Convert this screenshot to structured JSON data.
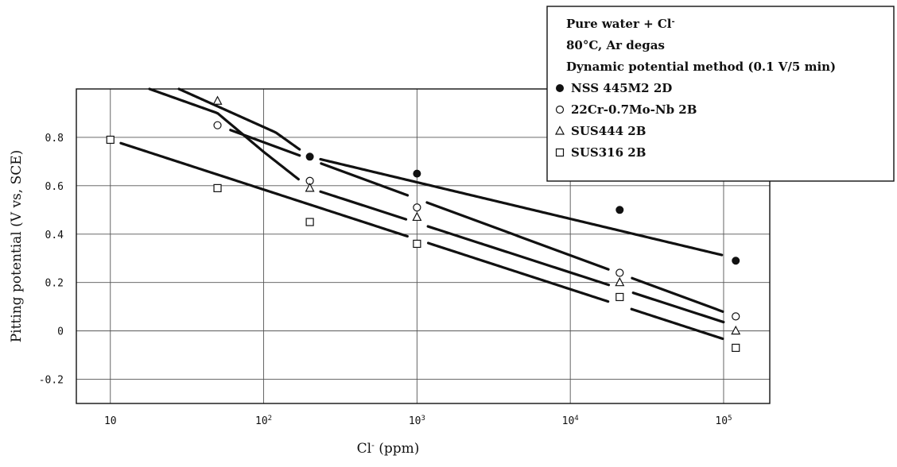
{
  "chart_data": {
    "type": "scatter",
    "xscale": "log",
    "xlim": [
      6,
      200000
    ],
    "ylim": [
      -0.3,
      1.0
    ],
    "grid": true,
    "xlabel_base": "Cl",
    "xlabel_sup": "-",
    "xlabel_unit": " (ppm)",
    "ylabel": "Pitting potential (V vs, SCE)",
    "x_ticks": [
      {
        "value": 10,
        "base": "10",
        "exp": ""
      },
      {
        "value": 100,
        "base": "10",
        "exp": "2"
      },
      {
        "value": 1000,
        "base": "10",
        "exp": "3"
      },
      {
        "value": 10000,
        "base": "10",
        "exp": "4"
      },
      {
        "value": 100000,
        "base": "10",
        "exp": "5"
      }
    ],
    "y_ticks": [
      {
        "value": 0.8,
        "label": "0.8"
      },
      {
        "value": 0.6,
        "label": "0.6"
      },
      {
        "value": 0.4,
        "label": "0.4"
      },
      {
        "value": 0.2,
        "label": "0.2"
      },
      {
        "value": 0,
        "label": "0"
      },
      {
        "value": -0.2,
        "label": "-0.2"
      }
    ],
    "legend": {
      "position": "top-right",
      "notes": [
        "Pure water + Cl",
        "80°C, Ar degas",
        "Dynamic potential method (0.1 V/5 min)"
      ],
      "note_sup": "-"
    },
    "series": [
      {
        "name": "NSS 445M2 2D",
        "marker": "filled-circle",
        "points": [
          [
            200,
            0.72
          ],
          [
            1000,
            0.65
          ],
          [
            21000,
            0.5
          ],
          [
            120000,
            0.29
          ]
        ],
        "fit": [
          [
            28,
            1.0
          ],
          [
            120,
            0.82
          ],
          [
            200,
            0.72
          ],
          [
            120000,
            0.3
          ]
        ],
        "gaps": [
          [
            175,
            230
          ],
          [
            100000,
            140000
          ]
        ]
      },
      {
        "name": "22Cr-0.7Mo-Nb 2B",
        "marker": "open-circle",
        "points": [
          [
            50,
            0.85
          ],
          [
            200,
            0.62
          ],
          [
            1000,
            0.51
          ],
          [
            21000,
            0.24
          ],
          [
            120000,
            0.06
          ]
        ],
        "fit": [
          [
            50,
            0.85
          ],
          [
            120000,
            0.06
          ]
        ],
        "gaps": [
          [
            42,
            60
          ],
          [
            175,
            230
          ],
          [
            870,
            1150
          ],
          [
            18000,
            25000
          ],
          [
            100000,
            140000
          ]
        ]
      },
      {
        "name": "SUS444 2B",
        "marker": "open-triangle",
        "points": [
          [
            50,
            0.95
          ],
          [
            200,
            0.59
          ],
          [
            1000,
            0.47
          ],
          [
            21000,
            0.2
          ],
          [
            120000,
            0.0
          ]
        ],
        "fit": [
          [
            18,
            1.0
          ],
          [
            50,
            0.9
          ],
          [
            100,
            0.74
          ],
          [
            200,
            0.59
          ],
          [
            120000,
            0.02
          ]
        ],
        "gaps": [
          [
            175,
            230
          ],
          [
            870,
            1150
          ],
          [
            18000,
            25000
          ],
          [
            100000,
            140000
          ]
        ]
      },
      {
        "name": "SUS316 2B",
        "marker": "open-square",
        "points": [
          [
            10,
            0.79
          ],
          [
            50,
            0.59
          ],
          [
            200,
            0.45
          ],
          [
            1000,
            0.36
          ],
          [
            21000,
            0.14
          ],
          [
            120000,
            -0.07
          ]
        ],
        "fit": [
          [
            10,
            0.79
          ],
          [
            120000,
            -0.05
          ]
        ],
        "gaps": [
          [
            8.6,
            11.5
          ],
          [
            870,
            1150
          ],
          [
            18000,
            25000
          ],
          [
            100000,
            140000
          ]
        ]
      }
    ]
  }
}
